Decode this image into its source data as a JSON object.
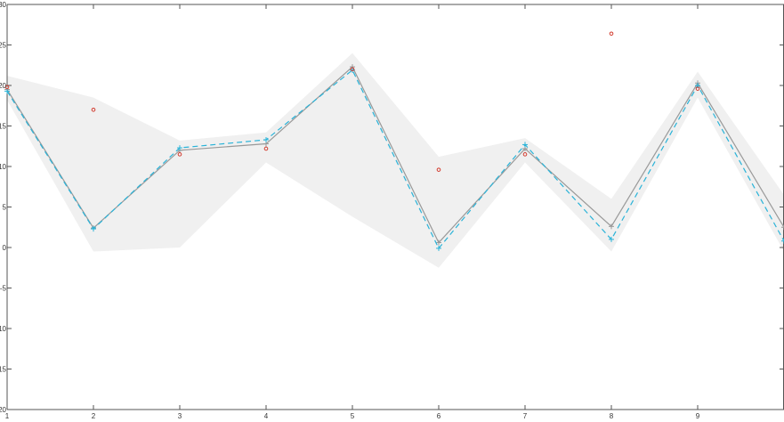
{
  "chart_data": {
    "type": "line",
    "x": [
      1,
      2,
      3,
      4,
      5,
      6,
      7,
      8,
      9,
      10
    ],
    "xlim": [
      1,
      10
    ],
    "ylim": [
      -20,
      30
    ],
    "x_ticks": [
      "1",
      "2",
      "3",
      "4",
      "5",
      "6",
      "7",
      "8",
      "9"
    ],
    "y_ticks": [
      "-20",
      "-15",
      "-10",
      "-5",
      "0",
      "5",
      "10",
      "15",
      "20",
      "25",
      "30"
    ],
    "grid": false,
    "legend": "none",
    "band": {
      "upper": [
        21.2,
        18.5,
        13.2,
        14.2,
        24.0,
        11.2,
        13.5,
        6.0,
        21.7,
        6.5
      ],
      "lower": [
        18.2,
        -0.5,
        0.0,
        10.5,
        3.8,
        -2.5,
        10.5,
        -0.5,
        18.5,
        -0.5
      ],
      "color": "#f0f0f0"
    },
    "series": [
      {
        "values": [
          19.5,
          2.4,
          12.0,
          12.8,
          22.3,
          0.6,
          12.2,
          2.6,
          20.3,
          2.5
        ],
        "style": "solid",
        "marker": "plus",
        "color": "#999999"
      },
      {
        "values": [
          19.3,
          2.3,
          12.3,
          13.3,
          21.9,
          -0.1,
          12.7,
          1.0,
          20.0,
          0.8
        ],
        "style": "dashed",
        "marker": "plus",
        "color": "#2ab3d8"
      }
    ],
    "points": {
      "x": [
        1,
        2,
        3,
        4,
        5,
        6,
        7,
        8,
        9
      ],
      "y": [
        19.8,
        17.0,
        11.5,
        12.2,
        22.0,
        9.6,
        11.5,
        26.4,
        19.6
      ],
      "marker": "circle",
      "color": "#d23b2e"
    }
  }
}
